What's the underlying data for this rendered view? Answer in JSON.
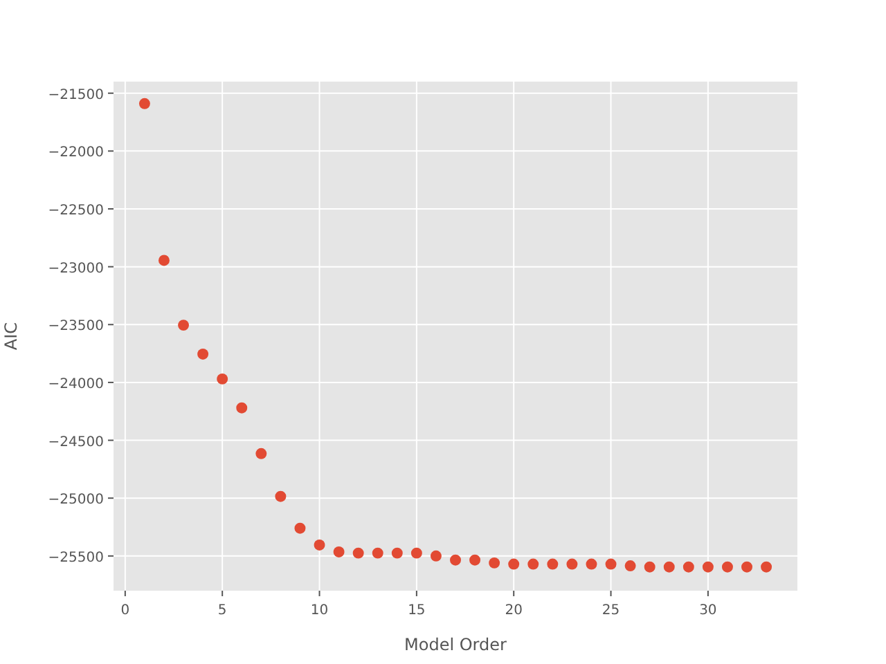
{
  "chart_data": {
    "type": "scatter",
    "xlabel": "Model Order",
    "ylabel": "AIC",
    "x": [
      1,
      2,
      3,
      4,
      5,
      6,
      7,
      8,
      9,
      10,
      11,
      12,
      13,
      14,
      15,
      16,
      17,
      18,
      19,
      20,
      21,
      22,
      23,
      24,
      25,
      26,
      27,
      28,
      29,
      30,
      31,
      32,
      33
    ],
    "values": [
      -21590,
      -22945,
      -23505,
      -23755,
      -23970,
      -24220,
      -24615,
      -24985,
      -25260,
      -25405,
      -25465,
      -25475,
      -25475,
      -25475,
      -25475,
      -25500,
      -25535,
      -25535,
      -25560,
      -25570,
      -25570,
      -25570,
      -25570,
      -25570,
      -25570,
      -25585,
      -25595,
      -25595,
      -25595,
      -25595,
      -25595,
      -25595,
      -25595
    ],
    "color": "#e24a33",
    "marker": "circle",
    "grid": true,
    "xlim": [
      -0.6,
      34.6
    ],
    "xticks": [
      0,
      5,
      10,
      15,
      20,
      25,
      30
    ],
    "ylim": [
      -25800,
      -21400
    ],
    "yticks": [
      -25500,
      -25000,
      -24500,
      -24000,
      -23500,
      -23000,
      -22500,
      -22000,
      -21500
    ]
  }
}
